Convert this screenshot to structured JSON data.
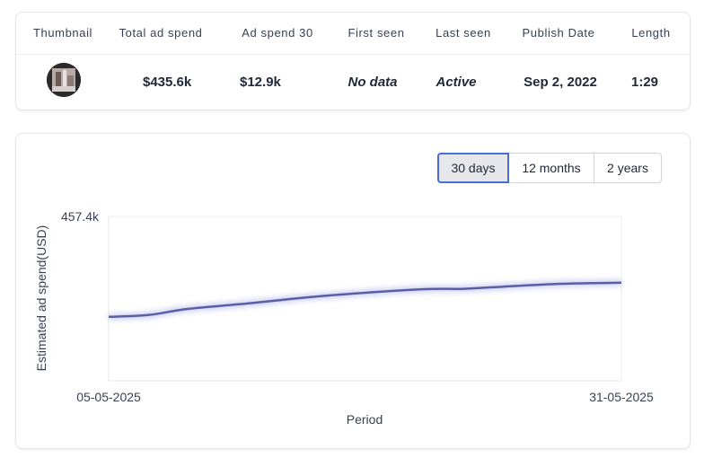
{
  "table": {
    "headers": [
      "Thumbnail",
      "Total ad spend",
      "Ad spend 30",
      "First seen",
      "Last seen",
      "Publish Date",
      "Length"
    ],
    "row": {
      "total_ad_spend": "$435.6k",
      "ad_spend_30": "$12.9k",
      "first_seen": "No data",
      "last_seen": "Active",
      "publish_date": "Sep 2, 2022",
      "length": "1:29"
    }
  },
  "range_buttons": {
    "options": [
      "30 days",
      "12 months",
      "2 years"
    ],
    "selected": "30 days"
  },
  "chart_data": {
    "type": "line",
    "ylabel": "Estimated ad spend(USD)",
    "xlabel": "Period",
    "y_tick_top": "457.4k",
    "ylim": [
      0,
      457400
    ],
    "x_tick_labels": [
      "05-05-2025",
      "31-05-2025"
    ],
    "series": [
      {
        "color": "#5b5ea6",
        "x": [
          "05-05-2025",
          "07-05-2025",
          "09-05-2025",
          "12-05-2025",
          "15-05-2025",
          "18-05-2025",
          "21-05-2025",
          "23-05-2025",
          "25-05-2025",
          "28-05-2025",
          "31-05-2025"
        ],
        "values": [
          178000,
          183000,
          200000,
          215000,
          232000,
          245000,
          255000,
          256000,
          262000,
          270000,
          273000
        ]
      }
    ],
    "grid": false
  }
}
